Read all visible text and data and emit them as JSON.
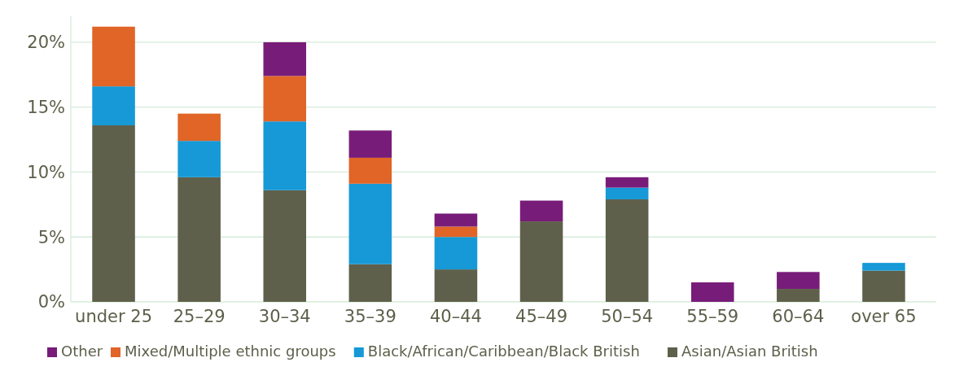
{
  "chart_data": {
    "type": "bar",
    "stacked": true,
    "categories": [
      "under 25",
      "25–29",
      "30–34",
      "35–39",
      "40–44",
      "45–49",
      "50–54",
      "55–59",
      "60–64",
      "over 65"
    ],
    "series": [
      {
        "name": "Asian/Asian British",
        "color": "#5f604b",
        "values": [
          13.6,
          9.6,
          8.6,
          2.9,
          2.5,
          6.2,
          7.9,
          0,
          1.0,
          2.4
        ]
      },
      {
        "name": "Black/African/Caribbean/Black British",
        "color": "#1699d6",
        "values": [
          3.0,
          2.8,
          5.3,
          6.2,
          2.5,
          0,
          0.9,
          0,
          0,
          0.6
        ]
      },
      {
        "name": "Mixed/Multiple ethnic groups",
        "color": "#e06527",
        "values": [
          4.6,
          2.1,
          3.5,
          2.0,
          0.8,
          0,
          0,
          0,
          0,
          0
        ]
      },
      {
        "name": "Other",
        "color": "#781c79",
        "values": [
          0,
          0,
          2.6,
          2.1,
          1.0,
          1.6,
          0.8,
          1.5,
          1.3,
          0
        ]
      }
    ],
    "ylim": [
      0,
      22
    ],
    "yticks": [
      {
        "value": 0,
        "label": "0%"
      },
      {
        "value": 5,
        "label": "5%"
      },
      {
        "value": 10,
        "label": "10%"
      },
      {
        "value": 15,
        "label": "15%"
      },
      {
        "value": 20,
        "label": "20%"
      }
    ],
    "grid": "y",
    "legend": "bottom"
  }
}
